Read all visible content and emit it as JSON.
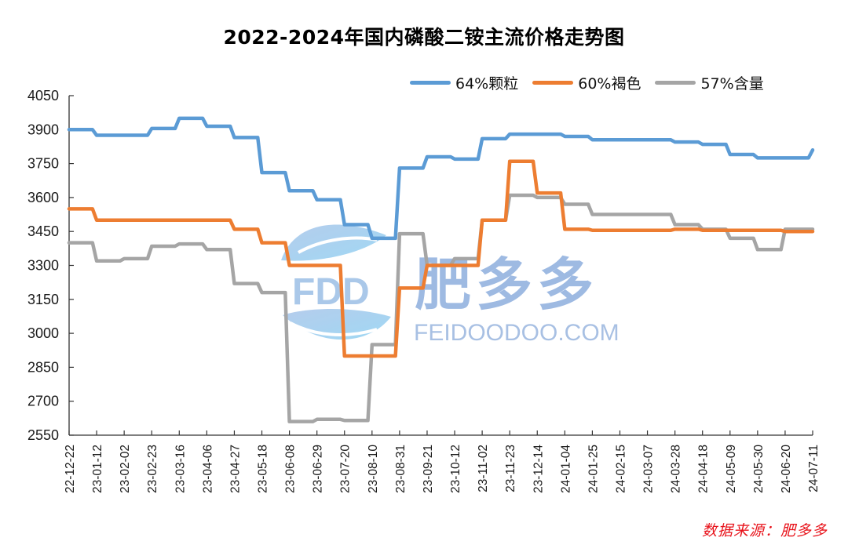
{
  "title": "2022-2024年国内磷酸二铵主流价格走势图",
  "source": "数据来源：肥多多",
  "watermark": {
    "brand_cn": "肥多多",
    "brand_en": "FEIDOODOO.COM",
    "logo_text": "FDD"
  },
  "legend": [
    {
      "label": "64%颗粒",
      "color": "#5b9bd5"
    },
    {
      "label": "60%褐色",
      "color": "#ed7d31"
    },
    {
      "label": "57%含量",
      "color": "#a5a5a5"
    }
  ],
  "chart_data": {
    "type": "line",
    "title": "2022-2024年国内磷酸二铵主流价格走势图",
    "xlabel": "",
    "ylabel": "",
    "ylim": [
      2550,
      4050
    ],
    "yticks": [
      2550,
      2700,
      2850,
      3000,
      3150,
      3300,
      3450,
      3600,
      3750,
      3900,
      4050
    ],
    "grid": false,
    "legend_position": "top-right",
    "categories": [
      "22-12-22",
      "23-01-12",
      "23-02-02",
      "23-02-23",
      "23-03-16",
      "23-04-06",
      "23-04-27",
      "23-05-18",
      "23-06-08",
      "23-06-29",
      "23-07-20",
      "23-08-10",
      "23-08-31",
      "23-09-21",
      "23-10-12",
      "23-11-02",
      "23-11-23",
      "23-12-14",
      "24-01-04",
      "24-01-25",
      "24-02-15",
      "24-03-07",
      "24-03-28",
      "24-04-18",
      "24-05-09",
      "24-05-30",
      "24-06-20",
      "24-07-11"
    ],
    "series": [
      {
        "name": "64%颗粒",
        "color": "#5b9bd5",
        "values": [
          3900,
          3875,
          3875,
          3905,
          3950,
          3915,
          3865,
          3710,
          3630,
          3590,
          3480,
          3420,
          3730,
          3780,
          3770,
          3860,
          3880,
          3880,
          3870,
          3855,
          3855,
          3855,
          3845,
          3835,
          3790,
          3775,
          3775,
          3810
        ]
      },
      {
        "name": "60%褐色",
        "color": "#ed7d31",
        "values": [
          3550,
          3500,
          3500,
          3500,
          3500,
          3500,
          3460,
          3400,
          3300,
          3300,
          2900,
          2900,
          3200,
          3300,
          3300,
          3500,
          3760,
          3620,
          3460,
          3455,
          3455,
          3455,
          3460,
          3455,
          3455,
          3455,
          3450,
          3450
        ]
      },
      {
        "name": "57%含量",
        "color": "#a5a5a5",
        "values": [
          3400,
          3320,
          3330,
          3385,
          3395,
          3370,
          3220,
          3180,
          2610,
          2620,
          2615,
          2950,
          3440,
          3300,
          3330,
          3500,
          3610,
          3600,
          3570,
          3525,
          3525,
          3525,
          3480,
          3460,
          3420,
          3370,
          3460,
          3460
        ]
      }
    ]
  }
}
